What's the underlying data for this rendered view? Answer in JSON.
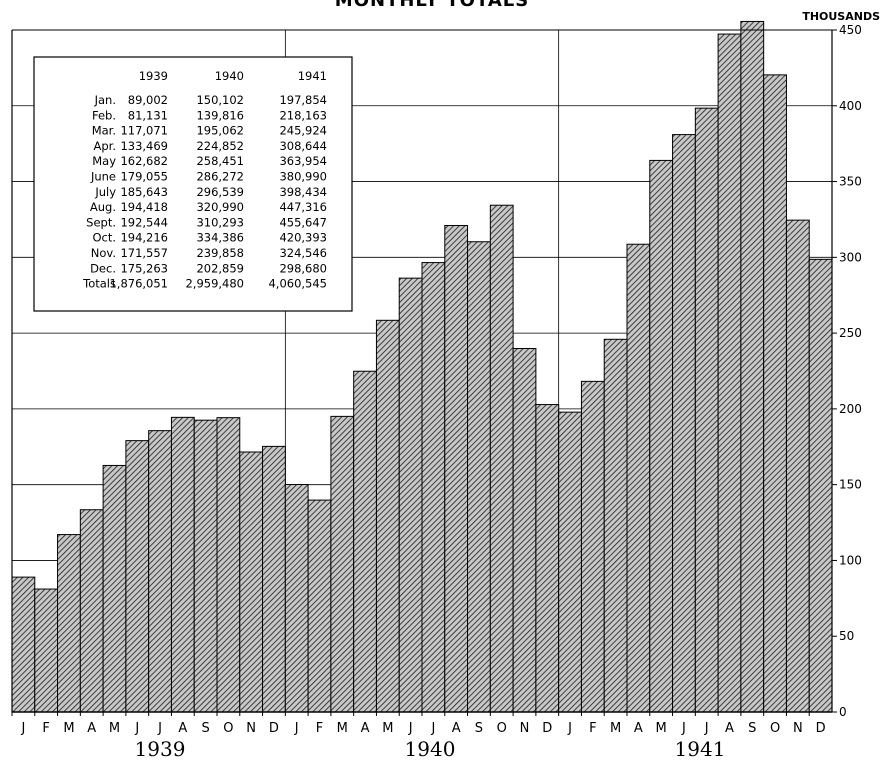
{
  "chart_data": {
    "type": "bar",
    "title": "MONTHLY TOTALS",
    "ylabel": "THOUSANDS",
    "ylim": [
      0,
      450
    ],
    "yticks": [
      0,
      50,
      100,
      150,
      200,
      250,
      300,
      350,
      400,
      450
    ],
    "grid": true,
    "categories": [
      "J",
      "F",
      "M",
      "A",
      "M",
      "J",
      "J",
      "A",
      "S",
      "O",
      "N",
      "D",
      "J",
      "F",
      "M",
      "A",
      "M",
      "J",
      "J",
      "A",
      "S",
      "O",
      "N",
      "D",
      "J",
      "F",
      "M",
      "A",
      "M",
      "J",
      "J",
      "A",
      "S",
      "O",
      "N",
      "D"
    ],
    "years": [
      "1939",
      "1940",
      "1941"
    ],
    "values": [
      89.002,
      81.131,
      117.071,
      133.469,
      162.682,
      179.055,
      185.643,
      194.418,
      192.544,
      194.216,
      171.557,
      175.263,
      150.102,
      139.816,
      195.062,
      224.852,
      258.451,
      286.272,
      296.539,
      320.99,
      310.293,
      334.386,
      239.858,
      202.859,
      197.854,
      218.163,
      245.924,
      308.644,
      363.954,
      380.99,
      398.434,
      447.316,
      455.647,
      420.393,
      324.546,
      298.68
    ],
    "table": {
      "headers": [
        "",
        "1939",
        "1940",
        "1941"
      ],
      "rows": [
        [
          "Jan.",
          "89,002",
          "150,102",
          "197,854"
        ],
        [
          "Feb.",
          "81,131",
          "139,816",
          "218,163"
        ],
        [
          "Mar.",
          "117,071",
          "195,062",
          "245,924"
        ],
        [
          "Apr.",
          "133,469",
          "224,852",
          "308,644"
        ],
        [
          "May",
          "162,682",
          "258,451",
          "363,954"
        ],
        [
          "June",
          "179,055",
          "286,272",
          "380,990"
        ],
        [
          "July",
          "185,643",
          "296,539",
          "398,434"
        ],
        [
          "Aug.",
          "194,418",
          "320,990",
          "447,316"
        ],
        [
          "Sept.",
          "192,544",
          "310,293",
          "455,647"
        ],
        [
          "Oct.",
          "194,216",
          "334,386",
          "420,393"
        ],
        [
          "Nov.",
          "171,557",
          "239,858",
          "324,546"
        ],
        [
          "Dec.",
          "175,263",
          "202,859",
          "298,680"
        ],
        [
          "Totals",
          "1,876,051",
          "2,959,480",
          "4,060,545"
        ]
      ]
    }
  }
}
